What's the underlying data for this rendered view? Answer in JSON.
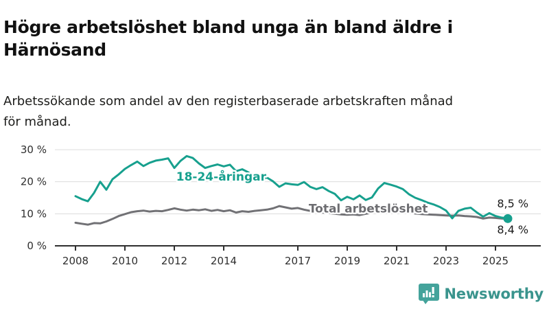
{
  "header": {
    "title_line1": "Högre arbetslöshet bland unga än bland äldre i",
    "title_line2": "Härnösand",
    "subtitle_line1": "Arbetssökande som andel av den registerbaserade arbetskraften månad",
    "subtitle_line2": "för månad."
  },
  "footer": {
    "brand": "Newsworthy"
  },
  "colors": {
    "accent_teal": "#17a08e",
    "series_gray": "#717175",
    "grid": "#dcdcdc",
    "axis": "#2e2e2e",
    "text": "#1d1d1b",
    "logo_teal": "#44a39b",
    "brand_text": "#3a948d"
  },
  "chart_data": {
    "type": "line",
    "title": "Högre arbetslöshet bland unga än bland äldre i Härnösand",
    "subtitle": "Arbetssökande som andel av den registerbaserade arbetskraften månad för månad.",
    "ylabel": "",
    "xlabel": "",
    "ylim": [
      0,
      30
    ],
    "grid": "horizontal",
    "legend": "inline-labels",
    "x_unit": "decimal_year",
    "x_start": 2008.0,
    "x_step_years": 0.25,
    "yticks": [
      {
        "value": 30,
        "label": "30 %"
      },
      {
        "value": 20,
        "label": "20 %"
      },
      {
        "value": 10,
        "label": "10 %"
      },
      {
        "value": 0,
        "label": "0 %"
      }
    ],
    "xticks": [
      {
        "value": 2008,
        "label": "2008"
      },
      {
        "value": 2010,
        "label": "2010"
      },
      {
        "value": 2012,
        "label": "2012"
      },
      {
        "value": 2014,
        "label": "2014"
      },
      {
        "value": 2017,
        "label": "2017"
      },
      {
        "value": 2019,
        "label": "2019"
      },
      {
        "value": 2021,
        "label": "2021"
      },
      {
        "value": 2023,
        "label": "2023"
      },
      {
        "value": 2025,
        "label": "2025"
      }
    ],
    "series": [
      {
        "name": "18-24-åringar",
        "color": "#17a08e",
        "end_label": "8,5 %",
        "end_dot": true,
        "values": [
          15.5,
          14.6,
          13.9,
          16.5,
          20.0,
          17.5,
          20.8,
          22.3,
          24.0,
          25.2,
          26.3,
          24.9,
          25.9,
          26.6,
          26.9,
          27.3,
          24.3,
          26.5,
          28.0,
          27.4,
          25.7,
          24.3,
          24.9,
          25.4,
          24.8,
          25.3,
          23.3,
          23.9,
          22.9,
          21.6,
          20.7,
          21.3,
          20.1,
          18.4,
          19.5,
          19.2,
          19.0,
          19.9,
          18.4,
          17.7,
          18.3,
          17.1,
          16.2,
          14.2,
          15.3,
          14.5,
          15.7,
          14.3,
          15.1,
          17.9,
          19.6,
          19.1,
          18.5,
          17.7,
          16.1,
          15.0,
          14.3,
          13.5,
          12.9,
          12.1,
          11.0,
          8.6,
          10.9,
          11.6,
          11.9,
          10.4,
          9.1,
          10.2,
          9.3,
          8.8,
          8.5
        ]
      },
      {
        "name": "Total arbetslöshet",
        "color": "#717175",
        "end_label": "8,4 %",
        "end_dot": false,
        "values": [
          7.2,
          6.9,
          6.6,
          7.1,
          7.0,
          7.6,
          8.4,
          9.3,
          9.9,
          10.5,
          10.8,
          11.0,
          10.7,
          10.9,
          10.8,
          11.2,
          11.7,
          11.3,
          11.0,
          11.3,
          11.1,
          11.4,
          10.9,
          11.2,
          10.8,
          11.1,
          10.4,
          10.8,
          10.6,
          10.9,
          11.1,
          11.3,
          11.7,
          12.4,
          12.0,
          11.6,
          11.8,
          11.3,
          10.9,
          10.6,
          10.4,
          10.2,
          10.0,
          9.8,
          9.7,
          9.8,
          9.6,
          10.0,
          10.3,
          11.0,
          11.3,
          11.1,
          11.0,
          10.7,
          10.4,
          10.1,
          9.9,
          9.8,
          9.7,
          9.6,
          9.5,
          9.4,
          9.5,
          9.3,
          9.2,
          9.0,
          8.5,
          8.8,
          8.7,
          8.5,
          8.4
        ]
      }
    ],
    "annotations": [
      {
        "text": "18-24-åringar",
        "x": 2013.9,
        "y": 21.6,
        "color": "#17a08e",
        "kind": "series-label"
      },
      {
        "text": "Total arbetslöshet",
        "x": 2019.85,
        "y": 11.7,
        "color": "#6d6d71",
        "kind": "series-label"
      },
      {
        "text": "8,5 %",
        "x": 2025.7,
        "y": 13.3,
        "color": "#1a1a1a",
        "kind": "value-label"
      },
      {
        "text": "8,4 %",
        "x": 2025.7,
        "y": 5.1,
        "color": "#1a1a1a",
        "kind": "value-label"
      }
    ]
  }
}
